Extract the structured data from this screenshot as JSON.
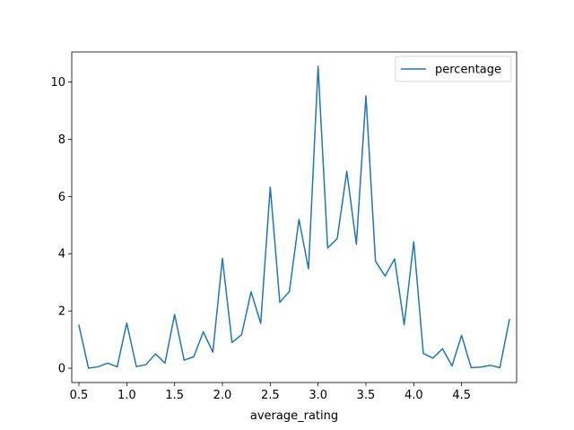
{
  "chart_data": {
    "type": "line",
    "title": "",
    "xlabel": "average_rating",
    "ylabel": "",
    "xlim": [
      0.425,
      5.075
    ],
    "ylim": [
      -0.5,
      11.05
    ],
    "xticks": [
      0.5,
      1.0,
      1.5,
      2.0,
      2.5,
      3.0,
      3.5,
      4.0,
      4.5
    ],
    "xtick_labels": [
      "0.5",
      "1.0",
      "1.5",
      "2.0",
      "2.5",
      "3.0",
      "3.5",
      "4.0",
      "4.5"
    ],
    "yticks": [
      0,
      2,
      4,
      6,
      8,
      10
    ],
    "ytick_labels": [
      "0",
      "2",
      "4",
      "6",
      "8",
      "10"
    ],
    "grid": false,
    "legend": {
      "position": "top-right",
      "entries": [
        "percentage"
      ]
    },
    "series": [
      {
        "name": "percentage",
        "color": "#1f77b4",
        "x": [
          0.5,
          0.6,
          0.7,
          0.8,
          0.9,
          1.0,
          1.1,
          1.2,
          1.3,
          1.4,
          1.5,
          1.6,
          1.7,
          1.8,
          1.9,
          2.0,
          2.1,
          2.2,
          2.3,
          2.4,
          2.5,
          2.6,
          2.7,
          2.8,
          2.9,
          3.0,
          3.1,
          3.2,
          3.3,
          3.4,
          3.5,
          3.6,
          3.7,
          3.8,
          3.9,
          4.0,
          4.1,
          4.2,
          4.3,
          4.4,
          4.5,
          4.6,
          4.7,
          4.8,
          4.9,
          5.0
        ],
        "values": [
          1.5,
          0.0,
          0.05,
          0.18,
          0.05,
          1.58,
          0.06,
          0.12,
          0.5,
          0.18,
          1.88,
          0.28,
          0.4,
          1.27,
          0.56,
          3.84,
          0.9,
          1.17,
          2.67,
          1.57,
          6.33,
          2.3,
          2.68,
          5.2,
          3.47,
          10.55,
          4.2,
          4.53,
          6.88,
          4.33,
          9.52,
          3.74,
          3.22,
          3.82,
          1.52,
          4.42,
          0.52,
          0.35,
          0.68,
          0.08,
          1.15,
          0.02,
          0.04,
          0.1,
          0.02,
          1.7
        ]
      }
    ]
  }
}
